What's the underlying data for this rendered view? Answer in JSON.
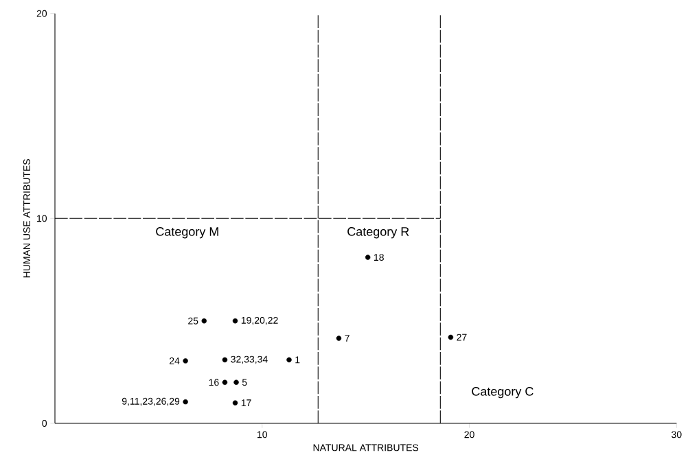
{
  "chart_data": {
    "type": "scatter",
    "xlabel": "NATURAL ATTRIBUTES",
    "ylabel": "HUMAN USE ATTRIBUTES",
    "x": [
      15.1,
      7.2,
      8.7,
      13.7,
      19.1,
      6.3,
      8.2,
      11.3,
      8.2,
      8.75,
      6.3,
      8.7
    ],
    "values": [
      8.1,
      5,
      5,
      4.15,
      4.2,
      3.05,
      3.1,
      3.1,
      2,
      2,
      1.05,
      1
    ],
    "color": "#000000",
    "marker": "circle",
    "xlim": [
      0,
      30
    ],
    "ylim": [
      0,
      20
    ],
    "xticks": [
      10,
      20,
      30
    ],
    "yticks": [
      0,
      10,
      20
    ],
    "ref_lines": [
      {
        "axis": "x",
        "value": 12.7,
        "line_style": "dashed"
      },
      {
        "axis": "x",
        "value": 18.6,
        "line_style": "dashed"
      },
      {
        "axis": "y",
        "value": 10,
        "line_style": "dashed"
      }
    ],
    "annotations": [
      "Category M",
      "Category R",
      "Category C",
      {
        "text": "18",
        "x": 15.1,
        "y": 8.1
      },
      {
        "text": "25",
        "x": 7.2,
        "y": 5
      },
      {
        "text": "19,20,22",
        "x": 8.7,
        "y": 5
      },
      {
        "text": "7",
        "x": 13.7,
        "y": 4.15
      },
      {
        "text": "27",
        "x": 19.1,
        "y": 4.2
      },
      {
        "text": "24",
        "x": 6.3,
        "y": 3.05
      },
      {
        "text": "32,33,34",
        "x": 8.2,
        "y": 3.1
      },
      {
        "text": "1",
        "x": 11.3,
        "y": 3.1
      },
      {
        "text": "16",
        "x": 8.2,
        "y": 2
      },
      {
        "text": "5",
        "x": 8.75,
        "y": 2
      },
      {
        "text": "9,11,23,26,29",
        "x": 6.3,
        "y": 1.05
      },
      {
        "text": "17",
        "x": 8.7,
        "y": 1
      }
    ]
  }
}
